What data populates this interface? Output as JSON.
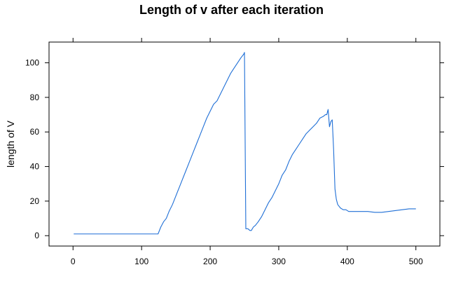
{
  "chart_data": {
    "type": "line",
    "title": "Length of v after each iteration",
    "xlabel": "",
    "ylabel": "length of V",
    "xlim": [
      -35,
      535
    ],
    "ylim": [
      -6,
      112
    ],
    "xticks": [
      "0",
      "100",
      "200",
      "300",
      "400",
      "500"
    ],
    "yticks": [
      "0",
      "20",
      "40",
      "60",
      "80",
      "100"
    ],
    "line_color": "#1f6fd6",
    "grid": false,
    "legend": "none",
    "series": [
      {
        "x": [
          1,
          10,
          50,
          100,
          124,
          128,
          132,
          136,
          140,
          145,
          150,
          155,
          160,
          165,
          170,
          175,
          180,
          185,
          190,
          195,
          200,
          205,
          210,
          215,
          220,
          225,
          230,
          235,
          240,
          245,
          249,
          250,
          252,
          253,
          255,
          258,
          260,
          263,
          266,
          270,
          275,
          280,
          285,
          290,
          295,
          300,
          305,
          310,
          315,
          320,
          325,
          330,
          335,
          340,
          345,
          350,
          355,
          360,
          365,
          368,
          370,
          372,
          374,
          376,
          378,
          380,
          382,
          384,
          386,
          388,
          390,
          394,
          398,
          402,
          410,
          420,
          430,
          440,
          450,
          460,
          470,
          480,
          490,
          500
        ],
        "y": [
          1,
          1,
          1,
          1,
          1,
          5,
          8,
          10,
          14,
          18,
          23,
          28,
          33,
          38,
          43,
          48,
          53,
          58,
          63,
          68,
          72,
          76,
          78,
          82,
          86,
          90,
          94,
          97,
          100,
          103,
          105,
          106,
          4,
          4,
          4,
          3,
          3,
          5,
          6,
          8,
          11,
          15,
          19,
          22,
          26,
          30,
          35,
          38,
          43,
          47,
          50,
          53,
          56,
          59,
          61,
          63,
          65,
          68,
          69,
          70,
          70,
          73,
          63,
          66,
          67,
          50,
          27,
          21,
          18,
          17,
          16,
          15,
          15,
          14,
          14,
          14,
          14,
          13.5,
          13.5,
          14,
          14.5,
          15,
          15.5,
          15.5
        ]
      }
    ]
  }
}
